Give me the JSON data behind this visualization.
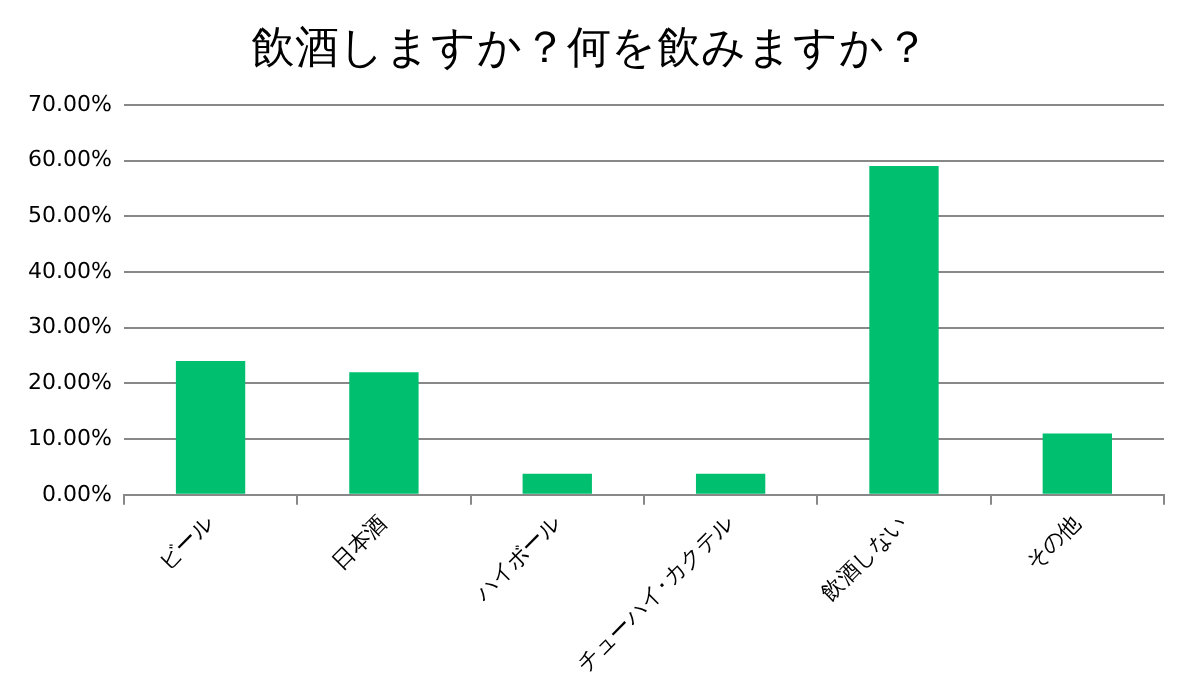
{
  "chart_data": {
    "type": "bar",
    "title": "飲酒しますか？何を飲みますか？",
    "categories": [
      "ビール",
      "日本酒",
      "ハイボール",
      "チューハイ･カクテル",
      "飲酒しない",
      "その他"
    ],
    "values": [
      24,
      22,
      3.8,
      3.8,
      59,
      11
    ],
    "color": "#00bf6f",
    "ylim": [
      0,
      70
    ],
    "yticks": [
      {
        "value": 0,
        "label": "0.00%"
      },
      {
        "value": 10,
        "label": "10.00%"
      },
      {
        "value": 20,
        "label": "20.00%"
      },
      {
        "value": 30,
        "label": "30.00%"
      },
      {
        "value": 40,
        "label": "40.00%"
      },
      {
        "value": 50,
        "label": "50.00%"
      },
      {
        "value": 60,
        "label": "60.00%"
      },
      {
        "value": 70,
        "label": "70.00%"
      }
    ],
    "grid": "y",
    "legend": false
  }
}
